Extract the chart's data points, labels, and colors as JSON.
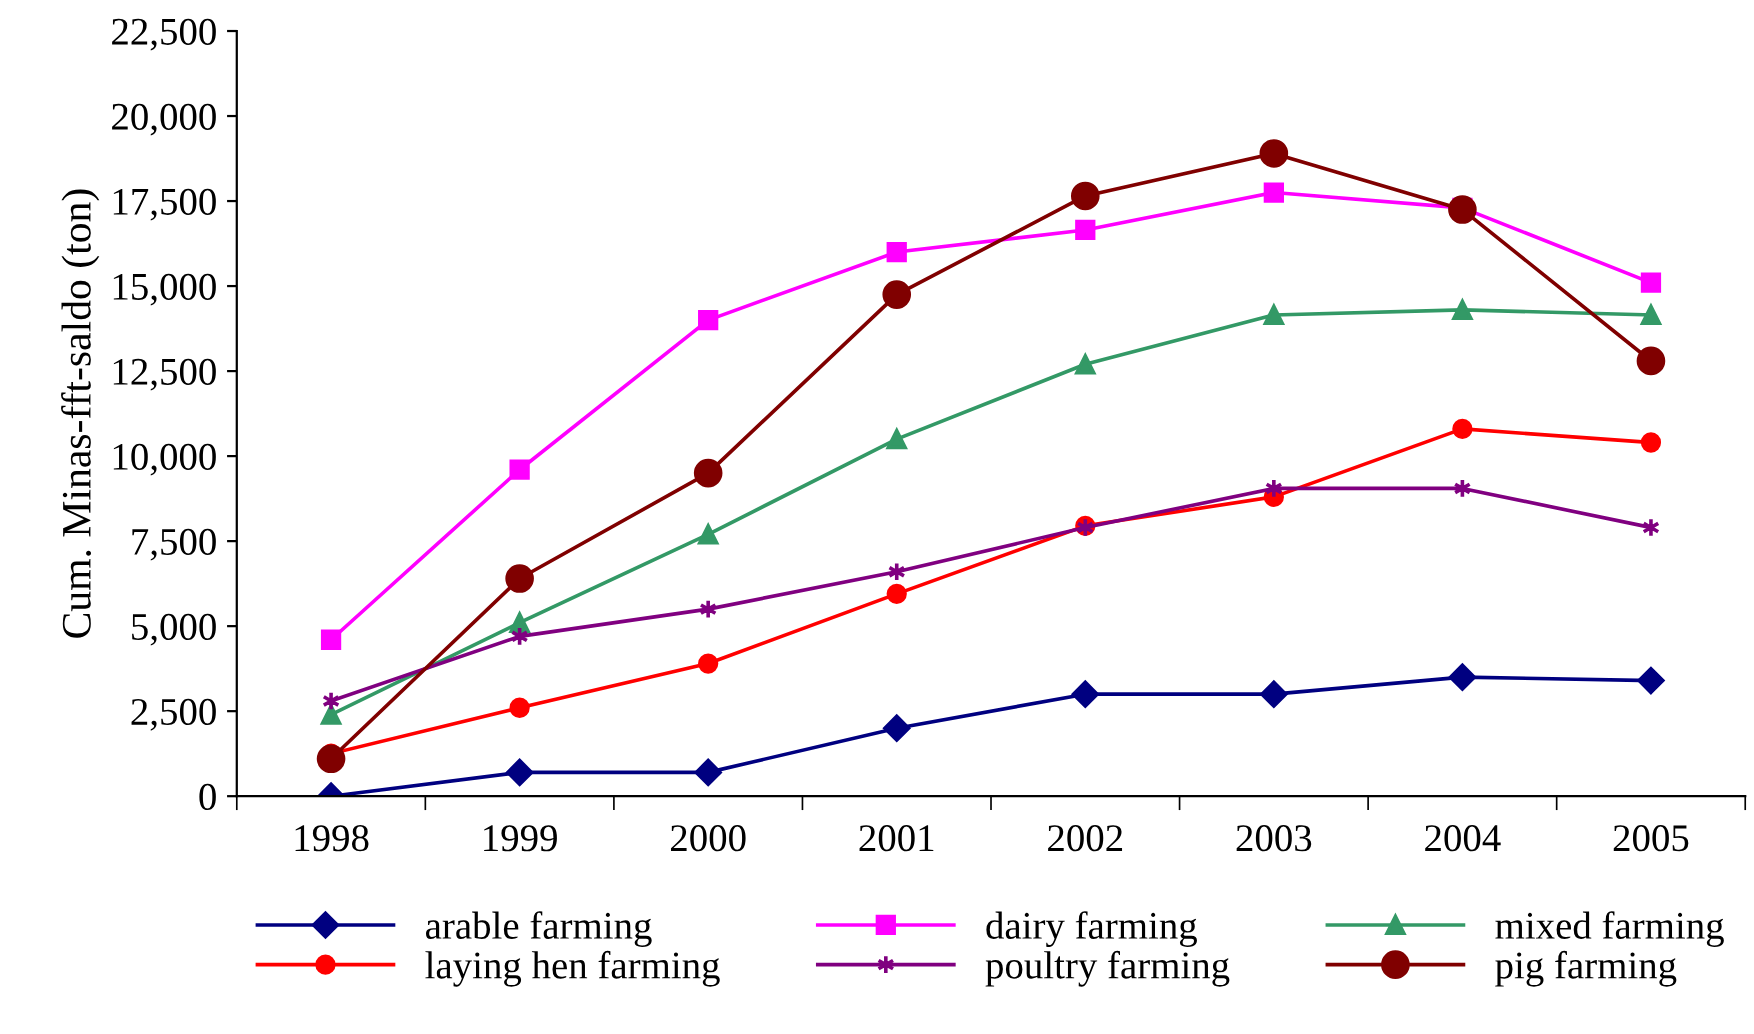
{
  "chart_data": {
    "type": "line",
    "ylabel": "Cum. Minas-fft-saldo (ton)",
    "categories": [
      "1998",
      "1999",
      "2000",
      "2001",
      "2002",
      "2003",
      "2004",
      "2005"
    ],
    "series": [
      {
        "name": "arable farming",
        "color": "#000080",
        "marker": "diamond",
        "values": [
          0,
          700,
          700,
          2000,
          3000,
          3000,
          3500,
          3400
        ]
      },
      {
        "name": "dairy farming",
        "color": "#ff00ff",
        "marker": "square",
        "values": [
          4600,
          9600,
          14000,
          16000,
          16650,
          17750,
          17300,
          15100
        ]
      },
      {
        "name": "mixed farming",
        "color": "#339966",
        "marker": "triangle",
        "values": [
          2400,
          5100,
          7700,
          10500,
          12700,
          14150,
          14300,
          14150
        ]
      },
      {
        "name": "laying hen farming",
        "color": "#ff0000",
        "marker": "circle",
        "values": [
          1250,
          2600,
          3900,
          5950,
          7950,
          8800,
          10800,
          10400
        ]
      },
      {
        "name": "poultry farming",
        "color": "#800080",
        "marker": "cross",
        "values": [
          2800,
          4700,
          5500,
          6600,
          7900,
          9050,
          9050,
          7900
        ]
      },
      {
        "name": "pig farming",
        "color": "#800000",
        "marker": "circle",
        "values": [
          1100,
          6400,
          9500,
          14750,
          17650,
          18900,
          17250,
          12800
        ]
      }
    ],
    "ylim": [
      0,
      22500
    ],
    "yticks": [
      {
        "value": 0,
        "label": "0"
      },
      {
        "value": 2500,
        "label": "2,500"
      },
      {
        "value": 5000,
        "label": "5,000"
      },
      {
        "value": 7500,
        "label": "7,500"
      },
      {
        "value": 10000,
        "label": "10,000"
      },
      {
        "value": 12500,
        "label": "12,500"
      },
      {
        "value": 15000,
        "label": "15,000"
      },
      {
        "value": 17500,
        "label": "17,500"
      },
      {
        "value": 20000,
        "label": "20,000"
      },
      {
        "value": 22500,
        "label": "22,500"
      }
    ],
    "grid": false,
    "legend": "bottom",
    "line_style": "solid"
  }
}
